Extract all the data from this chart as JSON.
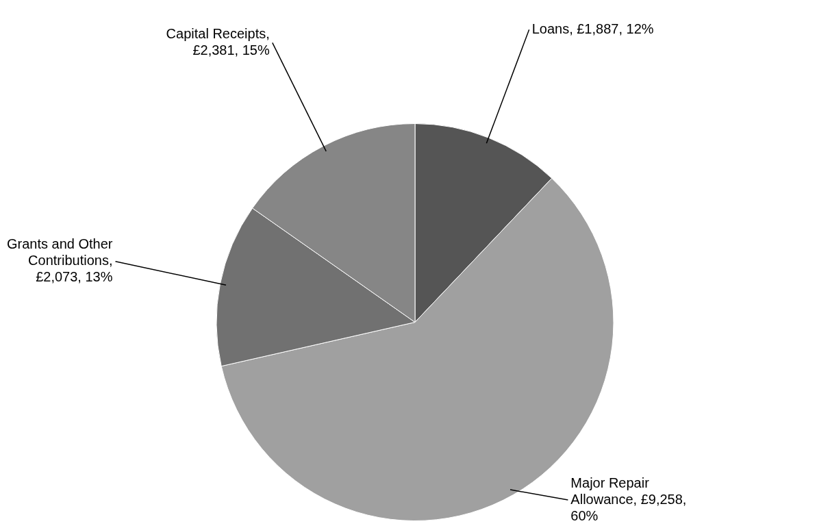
{
  "chart_data": {
    "type": "pie",
    "categories": [
      "Loans, £1,887, 12%",
      "Major Repair Allowance, £9,258, 60%",
      "Grants and Other Contributions, £2,073, 13%",
      "Capital Receipts, £2,381, 15%"
    ],
    "values": [
      1887,
      9258,
      2073,
      2381
    ],
    "colors": [
      "#555555",
      "#a0a0a0",
      "#717171",
      "#868686"
    ],
    "legend": false
  }
}
